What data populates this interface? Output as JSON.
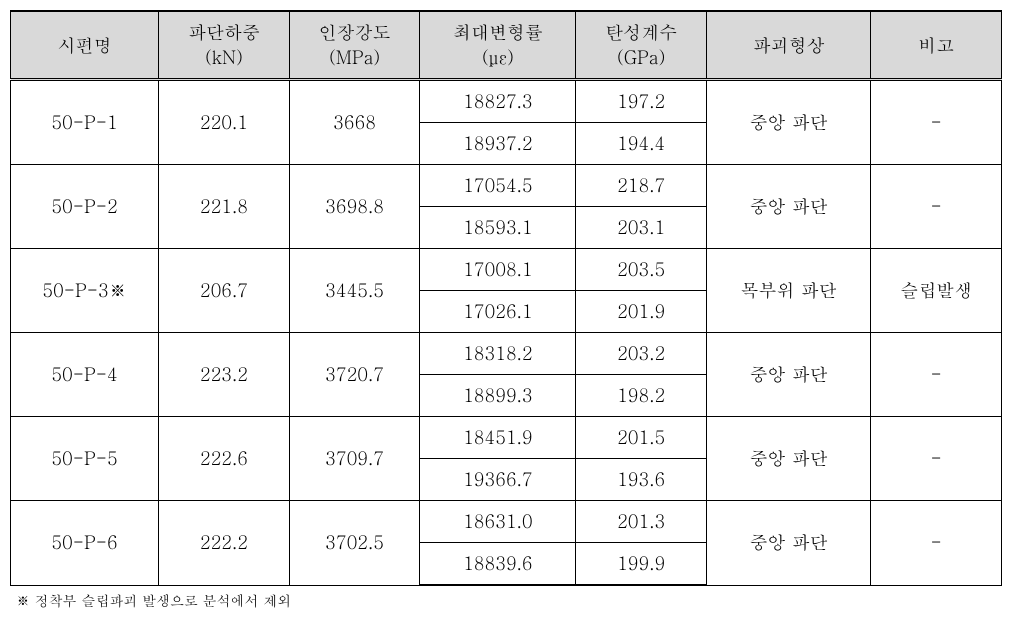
{
  "table": {
    "headers": [
      {
        "main": "시편명",
        "unit": ""
      },
      {
        "main": "파단하중",
        "unit": "(kN)"
      },
      {
        "main": "인장강도",
        "unit": "(MPa)"
      },
      {
        "main": "최대변형률",
        "unit": "(με)"
      },
      {
        "main": "탄성계수",
        "unit": "(GPa)"
      },
      {
        "main": "파괴형상",
        "unit": ""
      },
      {
        "main": "비고",
        "unit": ""
      }
    ],
    "rows": [
      {
        "specimen": "50-P-1",
        "load": "220.1",
        "strength": "3668",
        "strain1": "18827.3",
        "modulus1": "197.2",
        "strain2": "18937.2",
        "modulus2": "194.4",
        "shape": "중앙 파단",
        "note": "-"
      },
      {
        "specimen": "50-P-2",
        "load": "221.8",
        "strength": "3698.8",
        "strain1": "17054.5",
        "modulus1": "218.7",
        "strain2": "18593.1",
        "modulus2": "203.1",
        "shape": "중앙 파단",
        "note": "-"
      },
      {
        "specimen": "50-P-3※",
        "load": "206.7",
        "strength": "3445.5",
        "strain1": "17008.1",
        "modulus1": "203.5",
        "strain2": "17026.1",
        "modulus2": "201.9",
        "shape": "목부위 파단",
        "note": "슬립발생"
      },
      {
        "specimen": "50-P-4",
        "load": "223.2",
        "strength": "3720.7",
        "strain1": "18318.2",
        "modulus1": "203.2",
        "strain2": "18899.3",
        "modulus2": "198.2",
        "shape": "중앙 파단",
        "note": "-"
      },
      {
        "specimen": "50-P-5",
        "load": "222.6",
        "strength": "3709.7",
        "strain1": "18451.9",
        "modulus1": "201.5",
        "strain2": "19366.7",
        "modulus2": "193.6",
        "shape": "중앙 파단",
        "note": "-"
      },
      {
        "specimen": "50-P-6",
        "load": "222.2",
        "strength": "3702.5",
        "strain1": "18631.0",
        "modulus1": "201.3",
        "strain2": "18839.6",
        "modulus2": "199.9",
        "shape": "중앙 파단",
        "note": "-"
      }
    ],
    "footnote": "※ 정착부 슬립파괴 발생으로 분석에서 제외",
    "header_bg": "#d9d9d9",
    "border_color": "#000000",
    "font_size": 18,
    "footnote_font_size": 14
  }
}
